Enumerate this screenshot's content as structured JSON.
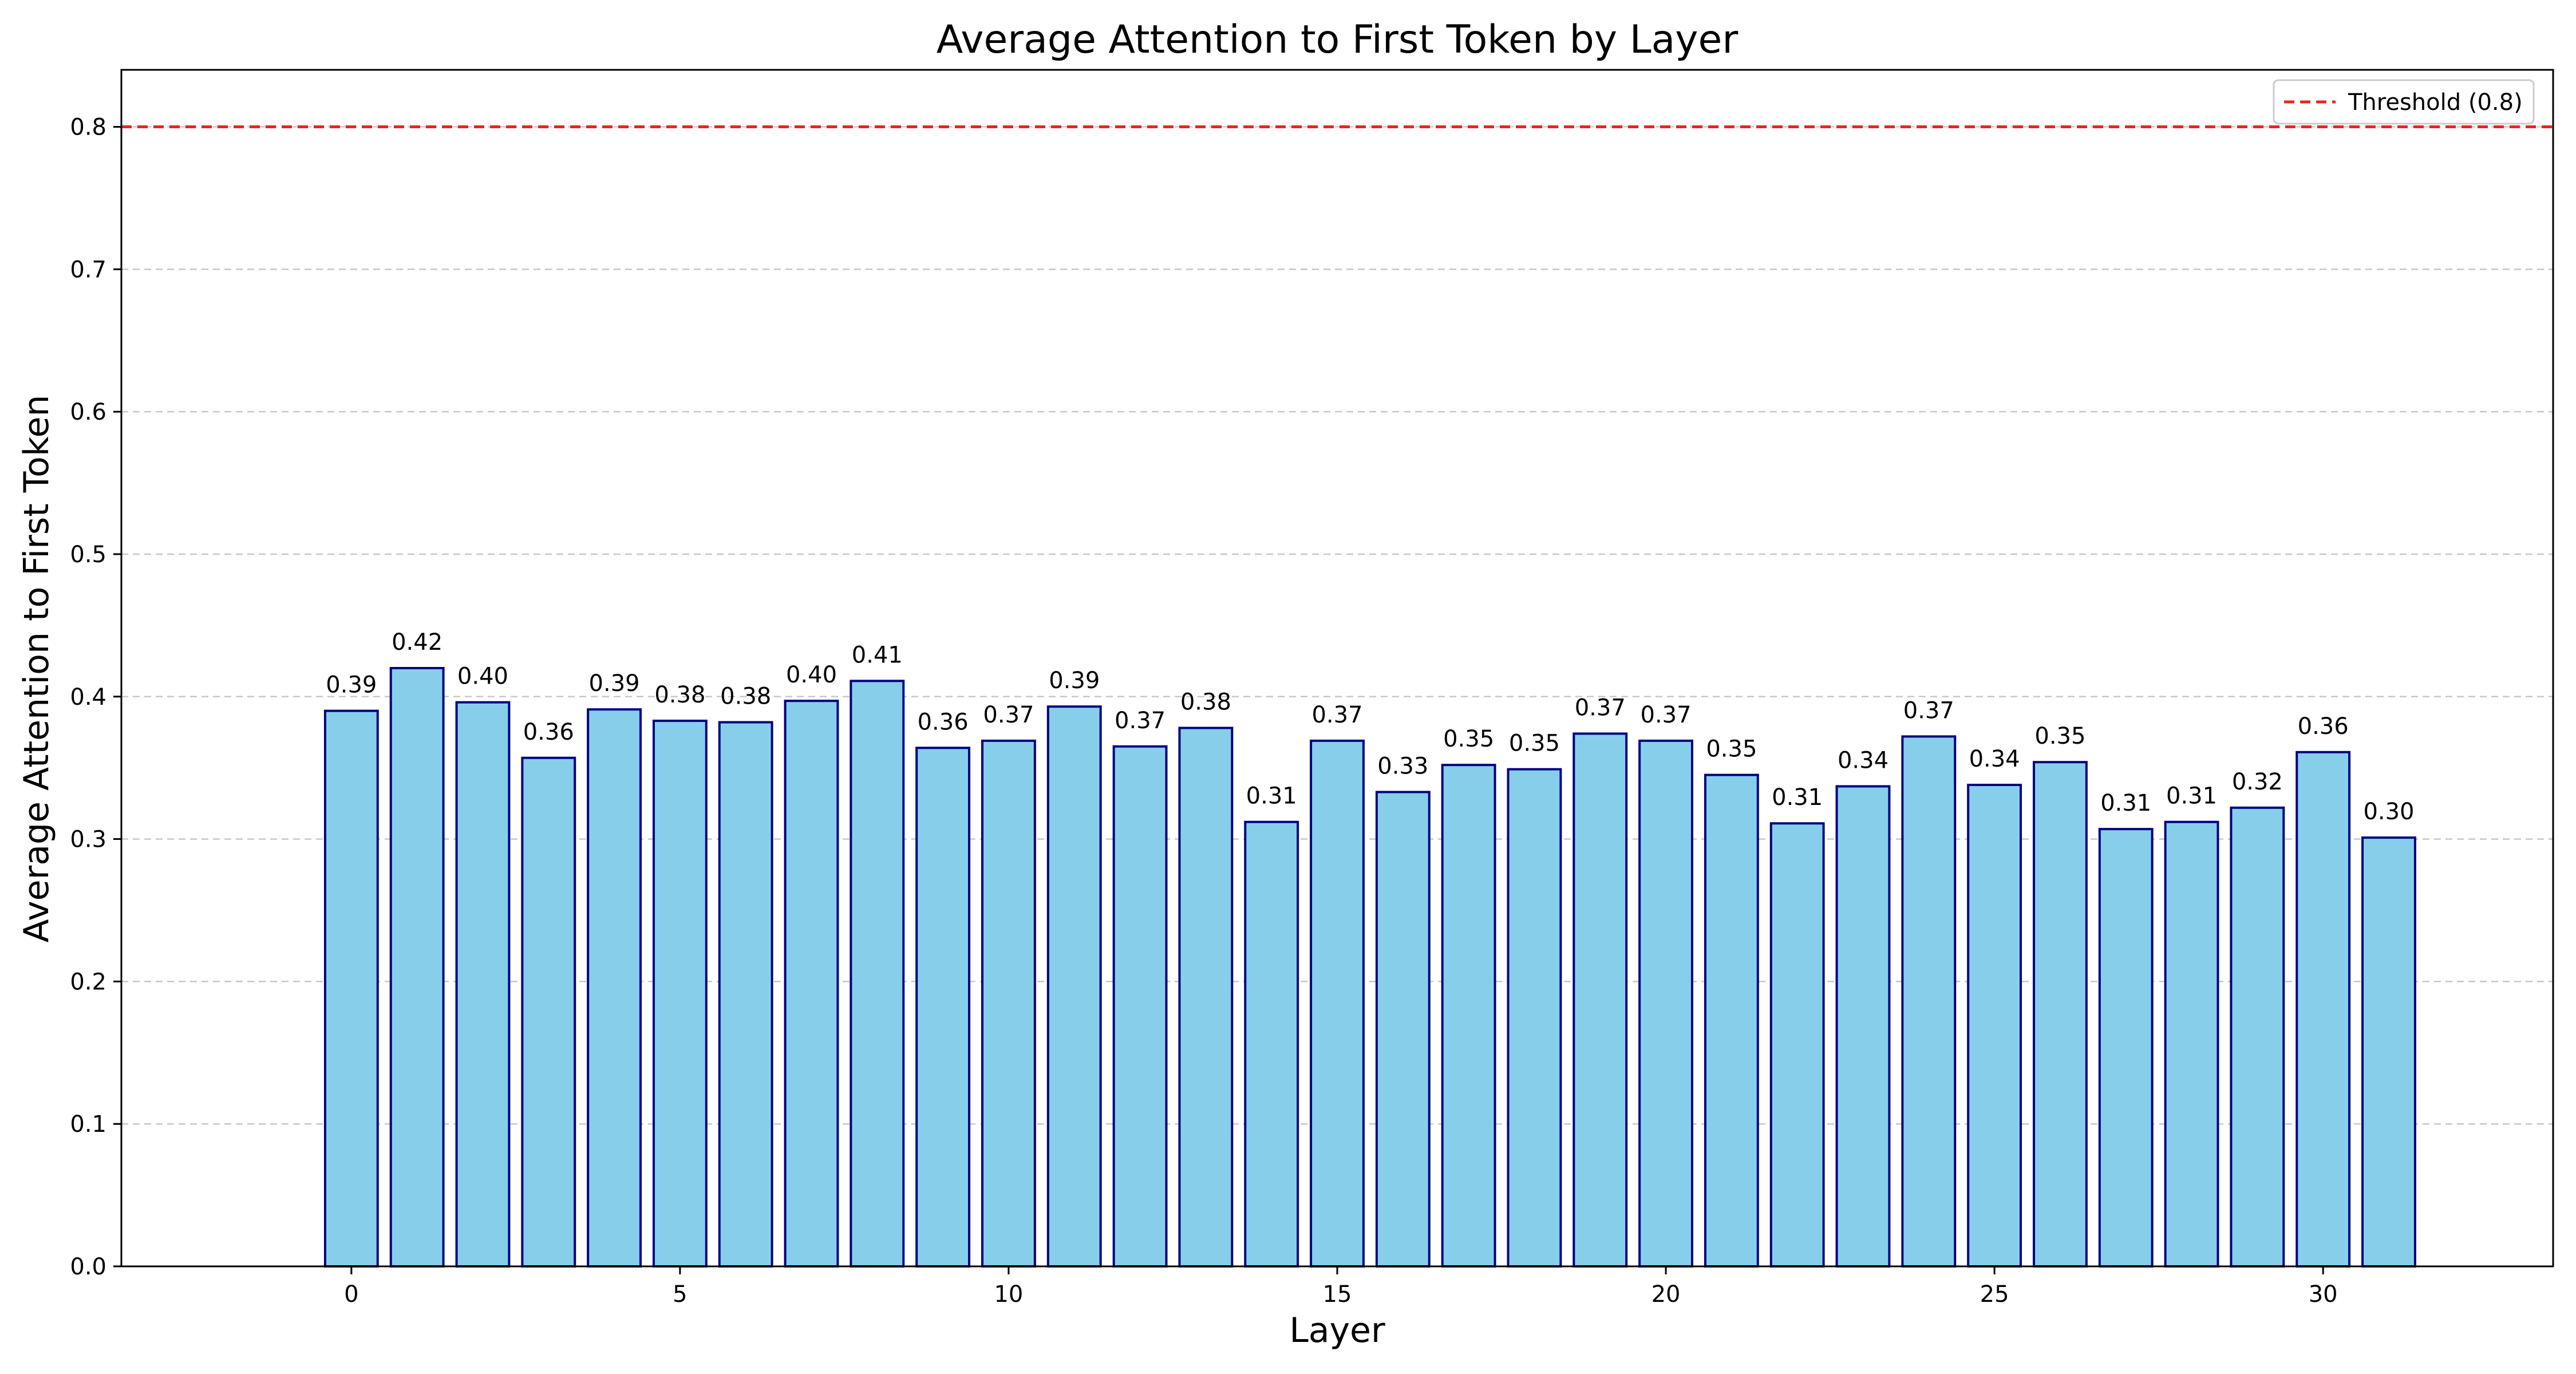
{
  "chart_data": {
    "type": "bar",
    "title": "Average Attention to First Token by Layer",
    "xlabel": "Layer",
    "ylabel": "Average Attention to First Token",
    "categories": [
      0,
      1,
      2,
      3,
      4,
      5,
      6,
      7,
      8,
      9,
      10,
      11,
      12,
      13,
      14,
      15,
      16,
      17,
      18,
      19,
      20,
      21,
      22,
      23,
      24,
      25,
      26,
      27,
      28,
      29,
      30,
      31
    ],
    "values": [
      0.39,
      0.42,
      0.396,
      0.357,
      0.391,
      0.383,
      0.382,
      0.397,
      0.411,
      0.364,
      0.369,
      0.393,
      0.365,
      0.378,
      0.312,
      0.369,
      0.333,
      0.352,
      0.349,
      0.374,
      0.369,
      0.345,
      0.311,
      0.337,
      0.372,
      0.338,
      0.354,
      0.307,
      0.312,
      0.322,
      0.361,
      0.301
    ],
    "value_labels": [
      "0.39",
      "0.42",
      "0.40",
      "0.36",
      "0.39",
      "0.38",
      "0.38",
      "0.40",
      "0.41",
      "0.36",
      "0.37",
      "0.39",
      "0.37",
      "0.38",
      "0.31",
      "0.37",
      "0.33",
      "0.35",
      "0.35",
      "0.37",
      "0.37",
      "0.35",
      "0.31",
      "0.34",
      "0.37",
      "0.34",
      "0.35",
      "0.31",
      "0.31",
      "0.32",
      "0.36",
      "0.30"
    ],
    "xlim": [
      -3.5,
      33.5
    ],
    "ylim": [
      0,
      0.84
    ],
    "xticks": [
      0,
      5,
      10,
      15,
      20,
      25,
      30
    ],
    "xtick_labels": [
      "0",
      "5",
      "10",
      "15",
      "20",
      "25",
      "30"
    ],
    "yticks": [
      0.0,
      0.1,
      0.2,
      0.3,
      0.4,
      0.5,
      0.6,
      0.7,
      0.8
    ],
    "ytick_labels": [
      "0.0",
      "0.1",
      "0.2",
      "0.3",
      "0.4",
      "0.5",
      "0.6",
      "0.7",
      "0.8"
    ],
    "grid": "y-dashed",
    "threshold": {
      "value": 0.8,
      "label": "Threshold (0.8)",
      "color": "#e8261c",
      "style": "dashed"
    },
    "legend_position": "top-right",
    "colors": {
      "bar_fill": "#87ceeb",
      "bar_edge": "#000080",
      "grid": "#c8c8c8"
    }
  }
}
